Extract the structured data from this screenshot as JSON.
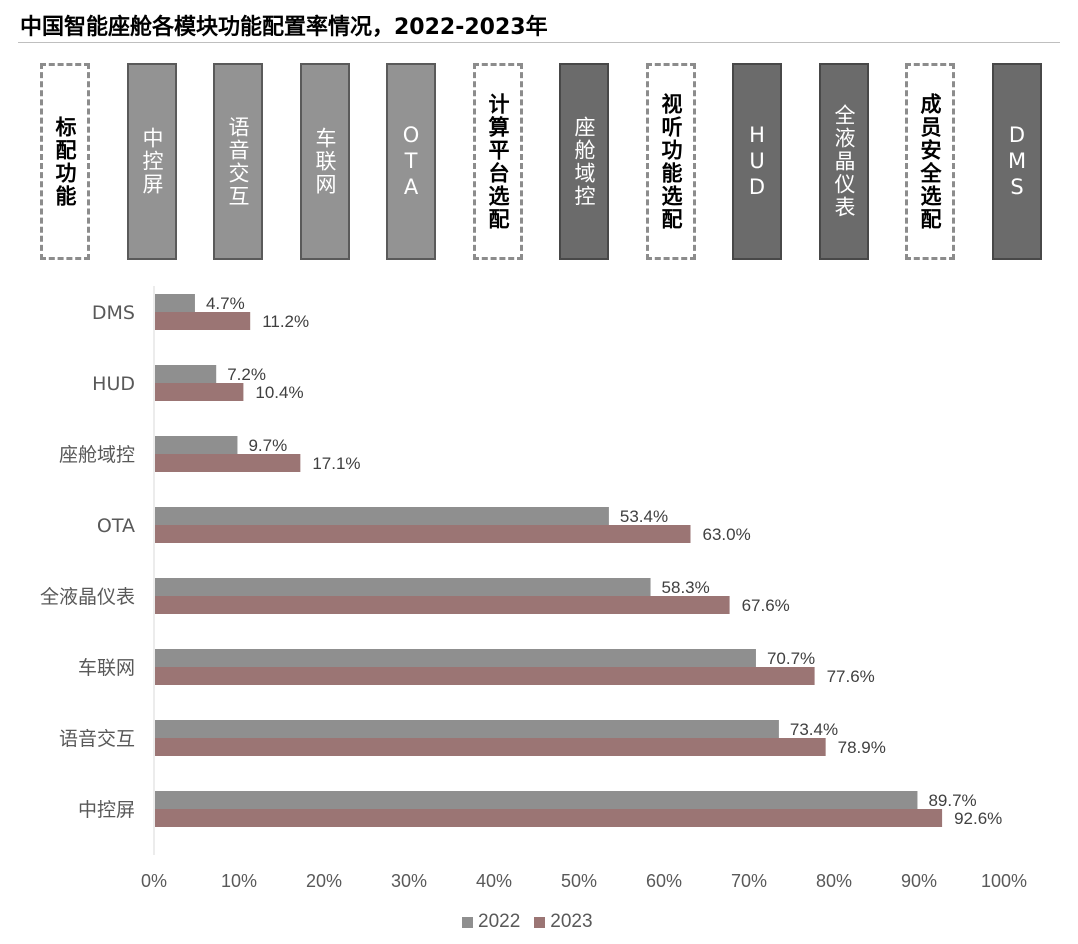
{
  "title": "中国智能座舱各模块功能配置率情况，2022-2023年",
  "module_boxes": [
    {
      "label": "标配功能",
      "style": "dashed"
    },
    {
      "label": "中控屏",
      "style": "gray"
    },
    {
      "label": "语音交互",
      "style": "gray"
    },
    {
      "label": "车联网",
      "style": "gray"
    },
    {
      "label": "OTA",
      "style": "gray"
    },
    {
      "label": "计算平台选配",
      "style": "dashed"
    },
    {
      "label": "座舱域控",
      "style": "dark"
    },
    {
      "label": "视听功能选配",
      "style": "dashed"
    },
    {
      "label": "HUD",
      "style": "dark"
    },
    {
      "label": "全液晶仪表",
      "style": "dark"
    },
    {
      "label": "成员安全选配",
      "style": "dashed"
    },
    {
      "label": "DMS",
      "style": "dark"
    }
  ],
  "colors": {
    "series_2022": "#8f8f8f",
    "series_2023": "#9b7574",
    "box_gray": "#939393",
    "box_dark": "#6b6b6b"
  },
  "chart_data": {
    "type": "bar",
    "orientation": "horizontal",
    "categories": [
      "DMS",
      "HUD",
      "座舱域控",
      "OTA",
      "全液晶仪表",
      "车联网",
      "语音交互",
      "中控屏"
    ],
    "series": [
      {
        "name": "2022",
        "values": [
          4.7,
          7.2,
          9.7,
          53.4,
          58.3,
          70.7,
          73.4,
          89.7
        ],
        "labels": [
          "4.7%",
          "7.2%",
          "9.7%",
          "53.4%",
          "58.3%",
          "70.7%",
          "73.4%",
          "89.7%"
        ]
      },
      {
        "name": "2023",
        "values": [
          11.2,
          10.4,
          17.1,
          63.0,
          67.6,
          77.6,
          78.9,
          92.6
        ],
        "labels": [
          "11.2%",
          "10.4%",
          "17.1%",
          "63.0%",
          "67.6%",
          "77.6%",
          "78.9%",
          "92.6%"
        ]
      }
    ],
    "xlim": [
      0,
      100
    ],
    "x_ticks": [
      0,
      10,
      20,
      30,
      40,
      50,
      60,
      70,
      80,
      90,
      100
    ],
    "x_tick_labels": [
      "0%",
      "10%",
      "20%",
      "30%",
      "40%",
      "50%",
      "60%",
      "70%",
      "80%",
      "90%",
      "100%"
    ],
    "grid": false,
    "legend_position": "bottom"
  }
}
